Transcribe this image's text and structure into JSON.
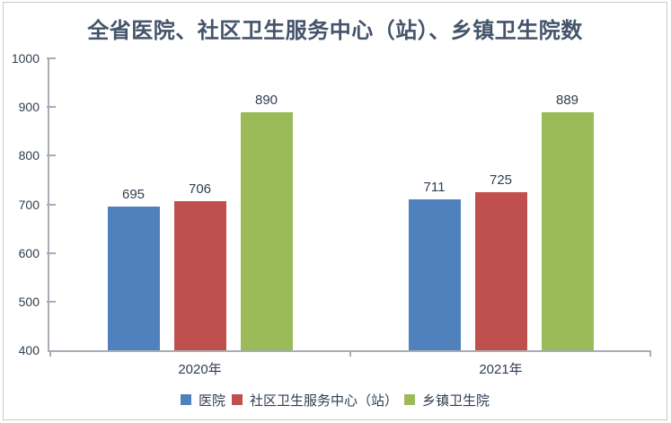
{
  "chart_data": {
    "type": "bar",
    "title": "全省医院、社区卫生服务中心（站）、乡镇卫生院数",
    "categories": [
      "2020年",
      "2021年"
    ],
    "series": [
      {
        "name": "医院",
        "color": "#4F81BD",
        "values": [
          695,
          711
        ]
      },
      {
        "name": "社区卫生服务中心（站）",
        "color": "#C0504D",
        "values": [
          706,
          725
        ]
      },
      {
        "name": "乡镇卫生院",
        "color": "#9BBB59",
        "values": [
          890,
          889
        ]
      }
    ],
    "ylim": [
      400,
      1000
    ],
    "y_ticks": [
      400,
      500,
      600,
      700,
      800,
      900,
      1000
    ],
    "grid": false,
    "legend_position": "bottom",
    "data_labels": true
  },
  "palette": {
    "title_text": "#44546A",
    "label_text": "#2F3E50",
    "axis_line": "#A7ADB3",
    "frame_border": "#C9C9C9",
    "background": "#FFFFFF"
  }
}
